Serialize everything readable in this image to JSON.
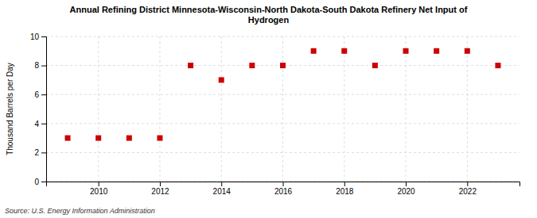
{
  "chart_data": {
    "type": "scatter",
    "title": "Annual Refining District Minnesota-Wisconsin-North Dakota-South Dakota Refinery Net Input of\nHydrogen",
    "y_label": "Thousand Barrels per Day",
    "source": "Source: U.S. Energy Information Administration",
    "x": [
      2009,
      2010,
      2011,
      2012,
      2013,
      2014,
      2015,
      2016,
      2017,
      2018,
      2019,
      2020,
      2021,
      2022,
      2023
    ],
    "values": [
      3,
      3,
      3,
      3,
      8,
      7,
      8,
      8,
      9,
      9,
      8,
      9,
      9,
      9,
      8
    ],
    "color": "#CC0000",
    "marker": "square",
    "xlim": [
      2008.3,
      2023.7
    ],
    "ylim": [
      0,
      10
    ],
    "xticks": [
      2010,
      2012,
      2014,
      2016,
      2018,
      2020,
      2022
    ],
    "yticks": [
      0,
      2,
      4,
      6,
      8,
      10
    ],
    "grid": true
  }
}
